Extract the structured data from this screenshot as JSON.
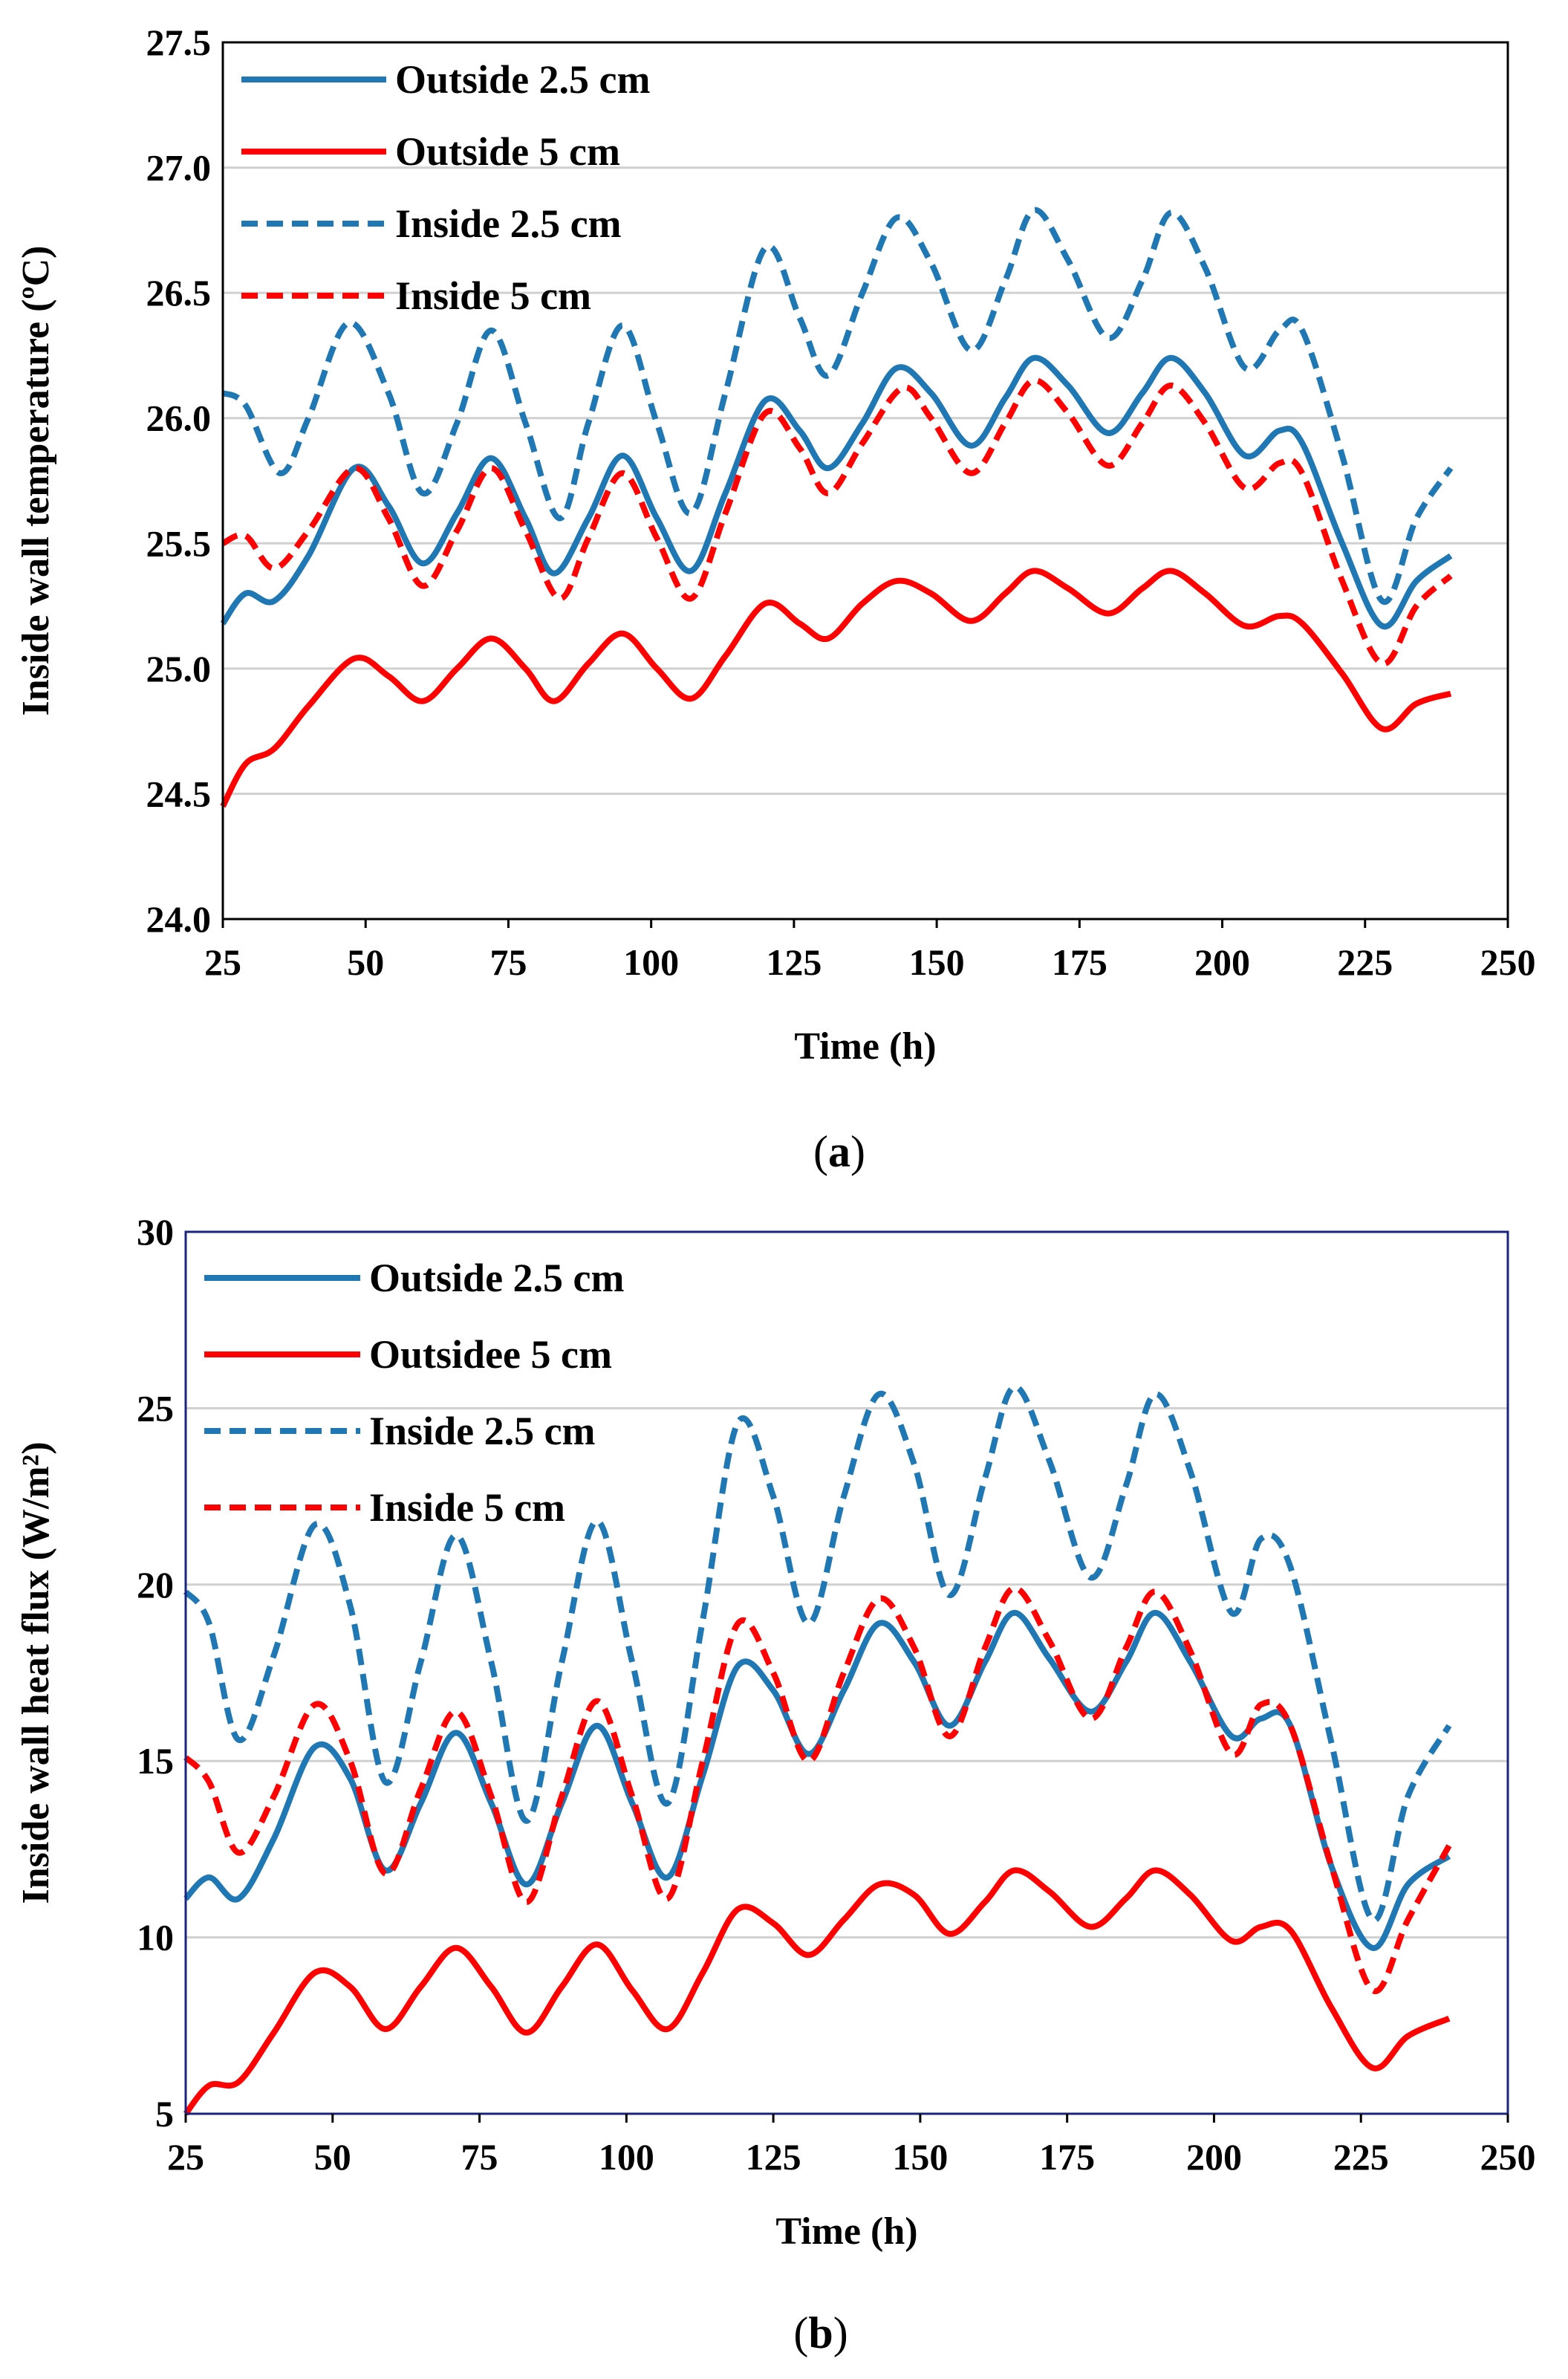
{
  "chart_data": [
    {
      "type": "line",
      "panel_label": "(a)",
      "panel_letter": "a",
      "xlabel": "Time (h)",
      "ylabel": "Inside wall temperature (ºC)",
      "xlim": [
        25,
        250
      ],
      "ylim": [
        24.0,
        27.5
      ],
      "xticks": [
        "25",
        "50",
        "75",
        "100",
        "125",
        "150",
        "175",
        "200",
        "225",
        "250"
      ],
      "yticks": [
        "24.0",
        "24.5",
        "25.0",
        "25.5",
        "26.0",
        "26.5",
        "27.0",
        "27.5"
      ],
      "grid": true,
      "frame_color": "#000000",
      "legend_position": "top-left",
      "series": [
        {
          "name": "Outside 2.5 cm",
          "color": "#1f77b4",
          "style": "solid",
          "x": [
            25,
            29,
            34,
            40,
            48,
            54,
            60,
            66,
            72,
            78,
            83,
            89,
            95,
            101,
            107,
            113,
            120,
            126,
            131,
            137,
            143,
            149,
            156,
            162,
            167,
            173,
            180,
            186,
            191,
            197,
            204,
            210,
            214,
            221,
            228,
            234,
            240
          ],
          "y": [
            25.18,
            25.3,
            25.27,
            25.45,
            25.8,
            25.65,
            25.42,
            25.62,
            25.84,
            25.6,
            25.38,
            25.6,
            25.85,
            25.6,
            25.39,
            25.7,
            26.07,
            25.95,
            25.8,
            25.98,
            26.2,
            26.1,
            25.89,
            26.08,
            26.24,
            26.13,
            25.94,
            26.1,
            26.24,
            26.1,
            25.85,
            25.95,
            25.9,
            25.5,
            25.17,
            25.35,
            25.45
          ]
        },
        {
          "name": "Outside 5 cm",
          "color": "#ff0000",
          "style": "solid",
          "x": [
            25,
            29,
            34,
            40,
            48,
            54,
            60,
            66,
            72,
            78,
            83,
            89,
            95,
            101,
            107,
            113,
            120,
            126,
            131,
            137,
            143,
            149,
            156,
            162,
            167,
            173,
            180,
            186,
            191,
            197,
            204,
            210,
            214,
            221,
            228,
            234,
            240
          ],
          "y": [
            24.45,
            24.62,
            24.68,
            24.85,
            25.04,
            24.97,
            24.87,
            25.0,
            25.12,
            25.0,
            24.87,
            25.02,
            25.14,
            25.0,
            24.88,
            25.05,
            25.26,
            25.18,
            25.12,
            25.26,
            25.35,
            25.3,
            25.19,
            25.3,
            25.39,
            25.32,
            25.22,
            25.32,
            25.39,
            25.3,
            25.17,
            25.21,
            25.18,
            24.98,
            24.76,
            24.86,
            24.9
          ]
        },
        {
          "name": "Inside 2.5 cm",
          "color": "#1f77b4",
          "style": "dashed",
          "x": [
            25,
            29,
            35,
            40,
            47,
            54,
            60,
            66,
            72,
            78,
            84,
            89,
            95,
            101,
            107,
            113,
            120,
            126,
            131,
            137,
            143,
            149,
            156,
            162,
            167,
            173,
            180,
            186,
            191,
            197,
            204,
            210,
            214,
            221,
            228,
            234,
            240
          ],
          "y": [
            26.1,
            26.05,
            25.78,
            26.0,
            26.38,
            26.1,
            25.7,
            25.98,
            26.35,
            25.98,
            25.6,
            25.98,
            26.37,
            25.98,
            25.62,
            26.1,
            26.68,
            26.4,
            26.17,
            26.5,
            26.8,
            26.62,
            26.27,
            26.55,
            26.83,
            26.63,
            26.32,
            26.55,
            26.82,
            26.6,
            26.2,
            26.35,
            26.35,
            25.85,
            25.27,
            25.6,
            25.8
          ]
        },
        {
          "name": "Inside 5 cm",
          "color": "#ff0000",
          "style": "dashed",
          "x": [
            25,
            29,
            34,
            40,
            48,
            54,
            60,
            66,
            72,
            78,
            84,
            89,
            95,
            101,
            107,
            113,
            120,
            126,
            131,
            137,
            144,
            149,
            156,
            162,
            167,
            173,
            180,
            186,
            191,
            197,
            204,
            210,
            214,
            221,
            228,
            234,
            240
          ],
          "y": [
            25.5,
            25.53,
            25.4,
            25.55,
            25.8,
            25.6,
            25.33,
            25.55,
            25.8,
            25.55,
            25.28,
            25.52,
            25.78,
            25.52,
            25.28,
            25.62,
            26.02,
            25.88,
            25.7,
            25.9,
            26.12,
            26.0,
            25.78,
            25.98,
            26.15,
            26.02,
            25.81,
            25.98,
            26.13,
            25.98,
            25.72,
            25.82,
            25.78,
            25.35,
            25.02,
            25.25,
            25.37
          ]
        }
      ]
    },
    {
      "type": "line",
      "panel_label": "(b)",
      "panel_letter": "b",
      "xlabel": "Time (h)",
      "ylabel": "Inside wall heat flux (W/m²)",
      "xlim": [
        25,
        250
      ],
      "ylim": [
        5,
        30
      ],
      "xticks": [
        "25",
        "50",
        "75",
        "100",
        "125",
        "150",
        "175",
        "200",
        "225",
        "250"
      ],
      "yticks": [
        "5",
        "10",
        "15",
        "20",
        "25",
        "30"
      ],
      "grid": true,
      "frame_color": "#1a237e",
      "legend_position": "top-left",
      "series": [
        {
          "name": "Outside 2.5 cm",
          "color": "#1f77b4",
          "style": "solid",
          "x": [
            25,
            29,
            34,
            40,
            47,
            53,
            59,
            65,
            71,
            77,
            83,
            89,
            95,
            101,
            107,
            113,
            119,
            125,
            131,
            137,
            143,
            149,
            155,
            161,
            166,
            172,
            179,
            185,
            190,
            196,
            203,
            208,
            213,
            220,
            227,
            233,
            240
          ],
          "y": [
            11.1,
            11.7,
            11.1,
            12.8,
            15.4,
            14.5,
            11.9,
            13.8,
            15.8,
            13.8,
            11.5,
            13.8,
            16.0,
            13.8,
            11.7,
            14.6,
            17.7,
            17.0,
            15.2,
            17.0,
            18.9,
            17.8,
            16.0,
            17.8,
            19.2,
            17.9,
            16.4,
            17.8,
            19.2,
            17.8,
            15.7,
            16.2,
            16.0,
            12.0,
            9.7,
            11.5,
            12.3
          ]
        },
        {
          "name": "Outsidee 5 cm",
          "color": "#ff0000",
          "style": "solid",
          "x": [
            25,
            29,
            34,
            40,
            47,
            53,
            59,
            65,
            71,
            77,
            83,
            89,
            95,
            101,
            107,
            113,
            119,
            125,
            131,
            137,
            143,
            149,
            155,
            161,
            166,
            172,
            179,
            185,
            190,
            196,
            203,
            208,
            213,
            220,
            227,
            233,
            240
          ],
          "y": [
            5.0,
            5.8,
            5.9,
            7.3,
            9.0,
            8.6,
            7.4,
            8.6,
            9.7,
            8.6,
            7.3,
            8.6,
            9.8,
            8.5,
            7.4,
            9.0,
            10.8,
            10.4,
            9.5,
            10.5,
            11.5,
            11.2,
            10.1,
            11.0,
            11.9,
            11.3,
            10.3,
            11.1,
            11.9,
            11.2,
            9.9,
            10.3,
            10.2,
            8.0,
            6.3,
            7.2,
            7.7
          ]
        },
        {
          "name": "Inside 2.5 cm",
          "color": "#1f77b4",
          "style": "dashed",
          "x": [
            25,
            29,
            34,
            40,
            47,
            53,
            59,
            65,
            71,
            77,
            83,
            89,
            95,
            101,
            107,
            113,
            119,
            125,
            131,
            137,
            143,
            149,
            155,
            161,
            166,
            172,
            179,
            185,
            190,
            196,
            203,
            208,
            213,
            220,
            227,
            233,
            240
          ],
          "y": [
            19.8,
            18.9,
            15.6,
            18.0,
            21.7,
            19.4,
            14.4,
            17.8,
            21.4,
            17.8,
            13.3,
            17.8,
            21.8,
            17.8,
            13.8,
            19.0,
            24.6,
            22.5,
            18.9,
            22.5,
            25.4,
            23.4,
            19.7,
            23.0,
            25.6,
            23.5,
            20.2,
            22.8,
            25.4,
            23.2,
            19.2,
            21.3,
            20.5,
            15.5,
            10.5,
            14.0,
            16.0
          ]
        },
        {
          "name": "Inside 5 cm",
          "color": "#ff0000",
          "style": "dashed",
          "x": [
            25,
            29,
            34,
            40,
            47,
            53,
            59,
            65,
            71,
            77,
            83,
            89,
            95,
            101,
            107,
            113,
            119,
            125,
            131,
            137,
            143,
            149,
            155,
            161,
            166,
            172,
            179,
            185,
            190,
            196,
            203,
            208,
            213,
            220,
            227,
            233,
            240
          ],
          "y": [
            15.1,
            14.4,
            12.4,
            14.0,
            16.6,
            15.0,
            11.8,
            14.2,
            16.4,
            14.0,
            11.0,
            14.0,
            16.7,
            14.0,
            11.1,
            15.0,
            18.9,
            17.5,
            15.0,
            17.5,
            19.6,
            18.2,
            15.7,
            18.2,
            19.9,
            18.4,
            16.2,
            18.2,
            19.8,
            18.1,
            15.2,
            16.6,
            16.0,
            12.0,
            8.5,
            10.5,
            12.6
          ]
        }
      ]
    }
  ]
}
